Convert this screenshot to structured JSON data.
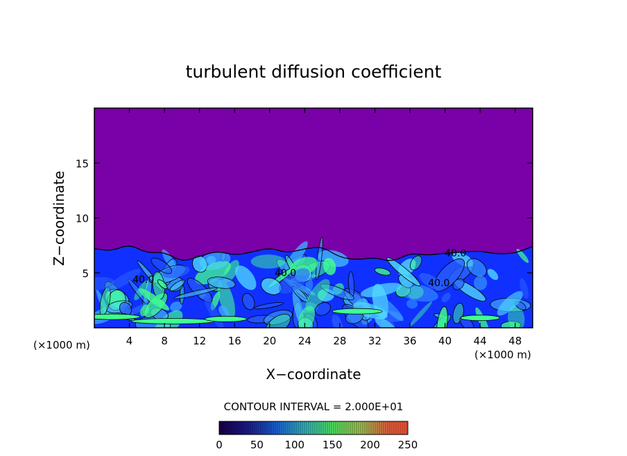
{
  "chart_data": {
    "type": "heatmap",
    "title": "turbulent diffusion coefficient",
    "xlabel": "X−coordinate",
    "ylabel": "Z−coordinate",
    "x_unit_left": "(×1000 m)",
    "x_unit_right": "(×1000 m)",
    "xlim": [
      0,
      50
    ],
    "ylim": [
      0,
      20
    ],
    "x_ticks": [
      4,
      8,
      12,
      16,
      20,
      24,
      28,
      32,
      36,
      40,
      44,
      48
    ],
    "y_ticks": [
      5,
      10,
      15
    ],
    "contour_interval_text": "CONTOUR INTERVAL = 2.000E+01",
    "contour_labels": [
      {
        "text": "40.0",
        "x": 21.8,
        "z": 4.7
      },
      {
        "text": "40.0",
        "x": 5.6,
        "z": 4.1
      },
      {
        "text": "40.0",
        "x": 41.2,
        "z": 6.5
      },
      {
        "text": "40.0",
        "x": 39.3,
        "z": 3.8
      }
    ],
    "boundary_layer_top": [
      [
        0,
        7.2
      ],
      [
        2,
        7.0
      ],
      [
        4,
        7.6
      ],
      [
        6,
        6.8
      ],
      [
        8,
        6.9
      ],
      [
        10,
        6.0
      ],
      [
        12,
        6.5
      ],
      [
        14,
        7.0
      ],
      [
        16,
        6.6
      ],
      [
        18,
        6.9
      ],
      [
        20,
        7.3
      ],
      [
        22,
        6.8
      ],
      [
        24,
        7.2
      ],
      [
        26,
        7.4
      ],
      [
        28,
        6.4
      ],
      [
        30,
        6.2
      ],
      [
        32,
        6.4
      ],
      [
        34,
        6.0
      ],
      [
        36,
        6.8
      ],
      [
        38,
        6.6
      ],
      [
        40,
        6.8
      ],
      [
        42,
        6.9
      ],
      [
        44,
        7.0
      ],
      [
        46,
        6.7
      ],
      [
        48,
        6.8
      ],
      [
        50,
        7.4
      ]
    ],
    "colorbar": {
      "colors": [
        "#1a0080",
        "#0028ff",
        "#2aa8ff",
        "#40e8a0",
        "#50ff40",
        "#ffa040",
        "#ff4020"
      ],
      "ticks": [
        0,
        50,
        100,
        150,
        200,
        250
      ],
      "range": [
        0,
        250
      ]
    },
    "background_color": "#7a00a8",
    "field_colors": [
      "#1030ff",
      "#2a60ff",
      "#40b0ff",
      "#50d8ff",
      "#40ff90"
    ]
  }
}
